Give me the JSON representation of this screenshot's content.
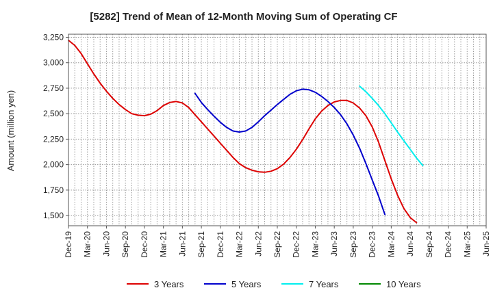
{
  "chart_data": {
    "type": "line",
    "title": "[5282]  Trend of Mean of 12-Month Moving Sum of Operating CF",
    "xlabel": "",
    "ylabel": "Amount (million yen)",
    "ylim": [
      1400,
      3280
    ],
    "yticks": [
      1500,
      1750,
      2000,
      2250,
      2500,
      2750,
      3000,
      3250
    ],
    "ytick_labels": [
      "1,500",
      "1,750",
      "2,000",
      "2,250",
      "2,500",
      "2,750",
      "3,000",
      "3,250"
    ],
    "x_range_months": [
      0,
      66
    ],
    "xticks": [
      {
        "m": 0,
        "label": "Dec-19"
      },
      {
        "m": 3,
        "label": "Mar-20"
      },
      {
        "m": 6,
        "label": "Jun-20"
      },
      {
        "m": 9,
        "label": "Sep-20"
      },
      {
        "m": 12,
        "label": "Dec-20"
      },
      {
        "m": 15,
        "label": "Mar-21"
      },
      {
        "m": 18,
        "label": "Jun-21"
      },
      {
        "m": 21,
        "label": "Sep-21"
      },
      {
        "m": 24,
        "label": "Dec-21"
      },
      {
        "m": 27,
        "label": "Mar-22"
      },
      {
        "m": 30,
        "label": "Jun-22"
      },
      {
        "m": 33,
        "label": "Sep-22"
      },
      {
        "m": 36,
        "label": "Dec-22"
      },
      {
        "m": 39,
        "label": "Mar-23"
      },
      {
        "m": 42,
        "label": "Jun-23"
      },
      {
        "m": 45,
        "label": "Sep-23"
      },
      {
        "m": 48,
        "label": "Dec-23"
      },
      {
        "m": 51,
        "label": "Mar-24"
      },
      {
        "m": 54,
        "label": "Jun-24"
      },
      {
        "m": 57,
        "label": "Sep-24"
      },
      {
        "m": 60,
        "label": "Dec-24"
      },
      {
        "m": 63,
        "label": "Mar-25"
      },
      {
        "m": 66,
        "label": "Jun-25"
      }
    ],
    "grid": true,
    "legend_position": "bottom",
    "series": [
      {
        "name": "3 Years",
        "color": "#dd0000",
        "points": [
          [
            0,
            3220
          ],
          [
            1,
            3170
          ],
          [
            2,
            3090
          ],
          [
            3,
            2990
          ],
          [
            4,
            2890
          ],
          [
            5,
            2800
          ],
          [
            6,
            2720
          ],
          [
            7,
            2650
          ],
          [
            8,
            2590
          ],
          [
            9,
            2540
          ],
          [
            10,
            2500
          ],
          [
            11,
            2485
          ],
          [
            12,
            2480
          ],
          [
            13,
            2495
          ],
          [
            14,
            2530
          ],
          [
            15,
            2580
          ],
          [
            16,
            2610
          ],
          [
            17,
            2620
          ],
          [
            18,
            2605
          ],
          [
            19,
            2560
          ],
          [
            20,
            2490
          ],
          [
            21,
            2420
          ],
          [
            22,
            2350
          ],
          [
            23,
            2280
          ],
          [
            24,
            2210
          ],
          [
            25,
            2140
          ],
          [
            26,
            2070
          ],
          [
            27,
            2010
          ],
          [
            28,
            1970
          ],
          [
            29,
            1945
          ],
          [
            30,
            1930
          ],
          [
            31,
            1925
          ],
          [
            32,
            1935
          ],
          [
            33,
            1960
          ],
          [
            34,
            2005
          ],
          [
            35,
            2070
          ],
          [
            36,
            2150
          ],
          [
            37,
            2245
          ],
          [
            38,
            2350
          ],
          [
            39,
            2450
          ],
          [
            40,
            2525
          ],
          [
            41,
            2580
          ],
          [
            42,
            2615
          ],
          [
            43,
            2630
          ],
          [
            44,
            2630
          ],
          [
            45,
            2605
          ],
          [
            46,
            2555
          ],
          [
            47,
            2480
          ],
          [
            48,
            2370
          ],
          [
            49,
            2220
          ],
          [
            50,
            2040
          ],
          [
            51,
            1860
          ],
          [
            52,
            1700
          ],
          [
            53,
            1570
          ],
          [
            54,
            1480
          ],
          [
            55,
            1430
          ]
        ]
      },
      {
        "name": "5 Years",
        "color": "#0000cc",
        "points": [
          [
            20,
            2700
          ],
          [
            21,
            2610
          ],
          [
            22,
            2540
          ],
          [
            23,
            2475
          ],
          [
            24,
            2415
          ],
          [
            25,
            2365
          ],
          [
            26,
            2330
          ],
          [
            27,
            2320
          ],
          [
            28,
            2330
          ],
          [
            29,
            2365
          ],
          [
            30,
            2420
          ],
          [
            31,
            2480
          ],
          [
            32,
            2535
          ],
          [
            33,
            2590
          ],
          [
            34,
            2640
          ],
          [
            35,
            2690
          ],
          [
            36,
            2725
          ],
          [
            37,
            2740
          ],
          [
            38,
            2735
          ],
          [
            39,
            2710
          ],
          [
            40,
            2670
          ],
          [
            41,
            2620
          ],
          [
            42,
            2560
          ],
          [
            43,
            2490
          ],
          [
            44,
            2400
          ],
          [
            45,
            2290
          ],
          [
            46,
            2160
          ],
          [
            47,
            2010
          ],
          [
            48,
            1850
          ],
          [
            49,
            1690
          ],
          [
            50,
            1510
          ]
        ]
      },
      {
        "name": "7 Years",
        "color": "#00eeee",
        "points": [
          [
            46,
            2770
          ],
          [
            47,
            2715
          ],
          [
            48,
            2650
          ],
          [
            49,
            2580
          ],
          [
            50,
            2500
          ],
          [
            51,
            2410
          ],
          [
            52,
            2320
          ],
          [
            53,
            2235
          ],
          [
            54,
            2150
          ],
          [
            55,
            2065
          ],
          [
            56,
            1990
          ]
        ]
      },
      {
        "name": "10 Years",
        "color": "#008800",
        "points": []
      }
    ]
  }
}
